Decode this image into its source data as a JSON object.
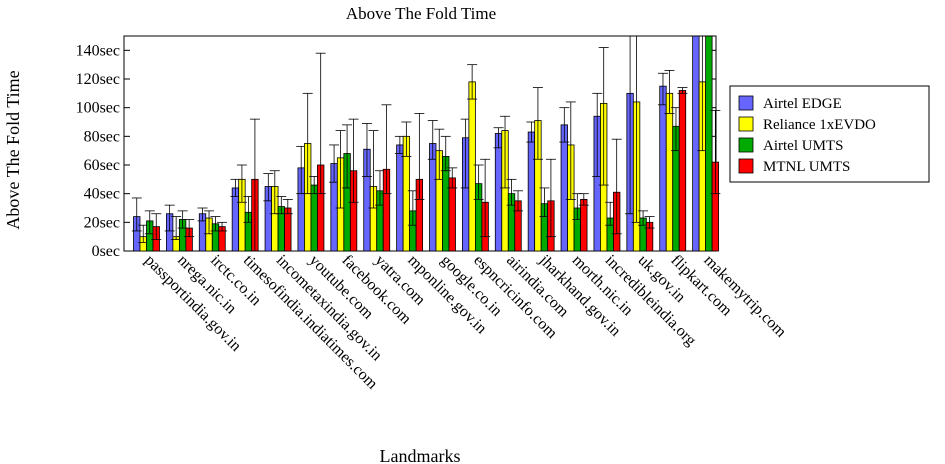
{
  "chart_data": {
    "type": "bar",
    "title": "Above The Fold Time",
    "xlabel": "Landmarks",
    "ylabel": "Above The Fold Time",
    "ylim": [
      0,
      150
    ],
    "yticks": [
      0,
      20,
      40,
      60,
      80,
      100,
      120,
      140
    ],
    "ytick_labels": [
      "0sec",
      "20sec",
      "40sec",
      "60sec",
      "80sec",
      "100sec",
      "120sec",
      "140sec"
    ],
    "legend_position": "right",
    "categories": [
      "passportindia.gov.in",
      "nrega.nic.in",
      "irctc.co.in",
      "timesofindia.indiatimes.com",
      "incometaxindia.gov.in",
      "youtube.com",
      "facebook.com",
      "yatra.com",
      "mponline.gov.in",
      "google.co.in",
      "espncricinfo.com",
      "airindia.com",
      "jharkhand.gov.in",
      "morth.nic.in",
      "incredibleindia.org",
      "uk.gov.in",
      "flipkart.com",
      "makemytrip.com"
    ],
    "series": [
      {
        "name": "Airtel EDGE",
        "color": "#6666ff",
        "values": [
          24,
          26,
          26,
          44,
          45,
          58,
          61,
          71,
          74,
          75,
          79,
          82,
          83,
          88,
          94,
          110,
          115,
          150
        ],
        "error_low": [
          14,
          14,
          21,
          38,
          35,
          40,
          48,
          52,
          68,
          64,
          44,
          72,
          76,
          76,
          52,
          26,
          102,
          150
        ],
        "error_high": [
          37,
          32,
          30,
          50,
          54,
          73,
          74,
          89,
          80,
          91,
          92,
          86,
          90,
          100,
          110,
          150,
          124,
          150
        ]
      },
      {
        "name": "Reliance 1xEVDO",
        "color": "#ffff00",
        "values": [
          10,
          10,
          23,
          50,
          45,
          75,
          65,
          45,
          80,
          70,
          118,
          84,
          91,
          74,
          103,
          104,
          110,
          118
        ],
        "error_low": [
          6,
          8,
          12,
          34,
          26,
          40,
          30,
          30,
          66,
          50,
          106,
          44,
          64,
          36,
          46,
          20,
          96,
          70
        ],
        "error_high": [
          18,
          24,
          28,
          60,
          56,
          110,
          84,
          84,
          90,
          85,
          130,
          94,
          114,
          104,
          142,
          150,
          126,
          150
        ]
      },
      {
        "name": "Airtel UMTS",
        "color": "#00aa00",
        "values": [
          21,
          22,
          19,
          27,
          31,
          46,
          68,
          42,
          28,
          66,
          47,
          40,
          33,
          30,
          23,
          23,
          87,
          150
        ],
        "error_low": [
          12,
          16,
          14,
          20,
          26,
          40,
          44,
          32,
          18,
          56,
          36,
          32,
          24,
          22,
          18,
          18,
          70,
          150
        ],
        "error_high": [
          28,
          28,
          24,
          38,
          38,
          52,
          88,
          56,
          42,
          80,
          60,
          50,
          44,
          40,
          34,
          28,
          100,
          150
        ]
      },
      {
        "name": "MTNL UMTS",
        "color": "#ff0000",
        "values": [
          17,
          16,
          17,
          50,
          30,
          60,
          56,
          57,
          50,
          51,
          34,
          35,
          35,
          36,
          41,
          20,
          112,
          62
        ],
        "error_low": [
          8,
          10,
          14,
          0,
          26,
          40,
          34,
          40,
          36,
          44,
          10,
          28,
          10,
          32,
          12,
          16,
          110,
          40
        ],
        "error_high": [
          26,
          22,
          20,
          92,
          36,
          138,
          92,
          102,
          96,
          58,
          64,
          42,
          64,
          40,
          78,
          24,
          114,
          98
        ]
      }
    ]
  }
}
